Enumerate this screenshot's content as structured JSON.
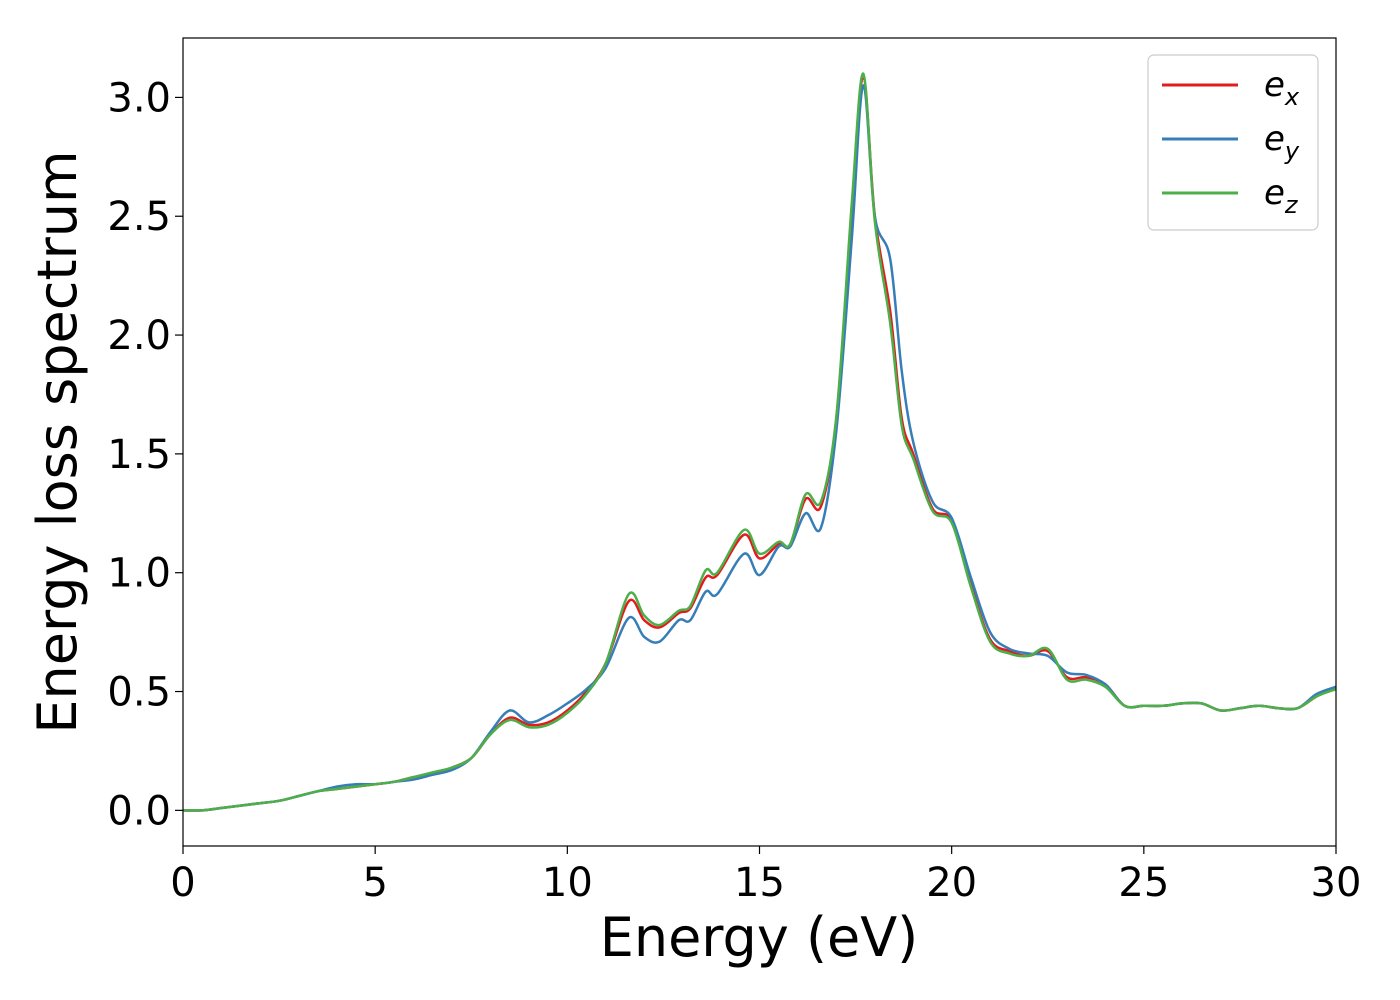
{
  "chart_data": {
    "type": "line",
    "title": "",
    "xlabel": "Energy (eV)",
    "ylabel": "Energy loss spectrum",
    "xlim": [
      0,
      30
    ],
    "ylim": [
      -0.15,
      3.25
    ],
    "xticks": [
      0,
      5,
      10,
      15,
      20,
      25,
      30
    ],
    "xtick_labels": [
      "0",
      "5",
      "10",
      "15",
      "20",
      "25",
      "30"
    ],
    "yticks": [
      0.0,
      0.5,
      1.0,
      1.5,
      2.0,
      2.5,
      3.0
    ],
    "ytick_labels": [
      "0.0",
      "0.5",
      "1.0",
      "1.5",
      "2.0",
      "2.5",
      "3.0"
    ],
    "grid": false,
    "legend_position": "top-right",
    "x": [
      0,
      0.5,
      1,
      1.5,
      2,
      2.5,
      3,
      3.5,
      4,
      4.5,
      5,
      5.5,
      6,
      6.5,
      7,
      7.5,
      8,
      8.5,
      9,
      9.5,
      10,
      10.5,
      11,
      11.6,
      12,
      12.4,
      12.9,
      13.2,
      13.6,
      13.9,
      14.6,
      15,
      15.5,
      15.8,
      16.2,
      16.6,
      17.0,
      17.4,
      17.7,
      18.0,
      18.4,
      18.7,
      19.0,
      19.5,
      20.0,
      20.5,
      21.0,
      21.5,
      22.0,
      22.5,
      23.0,
      23.5,
      24.0,
      24.5,
      25.0,
      25.5,
      26.0,
      26.5,
      27.0,
      27.5,
      28.0,
      28.5,
      29.0,
      29.5,
      30.0
    ],
    "series": [
      {
        "name": "e_x",
        "label_main": "e",
        "label_sub": "x",
        "color": "#e41a1c",
        "values": [
          0.0,
          0.0,
          0.01,
          0.02,
          0.03,
          0.04,
          0.06,
          0.08,
          0.09,
          0.1,
          0.11,
          0.12,
          0.14,
          0.15,
          0.18,
          0.22,
          0.32,
          0.39,
          0.36,
          0.37,
          0.42,
          0.5,
          0.62,
          0.88,
          0.8,
          0.77,
          0.83,
          0.85,
          0.98,
          0.99,
          1.16,
          1.06,
          1.12,
          1.12,
          1.31,
          1.28,
          1.65,
          2.5,
          3.08,
          2.5,
          2.1,
          1.65,
          1.5,
          1.27,
          1.22,
          0.95,
          0.72,
          0.67,
          0.65,
          0.67,
          0.56,
          0.56,
          0.53,
          0.44,
          0.44,
          0.44,
          0.45,
          0.45,
          0.42,
          0.43,
          0.44,
          0.43,
          0.43,
          0.48,
          0.52
        ]
      },
      {
        "name": "e_y",
        "label_main": "e",
        "label_sub": "y",
        "color": "#377eb8",
        "values": [
          0.0,
          0.0,
          0.01,
          0.02,
          0.03,
          0.04,
          0.06,
          0.08,
          0.1,
          0.11,
          0.11,
          0.12,
          0.13,
          0.15,
          0.17,
          0.22,
          0.33,
          0.42,
          0.37,
          0.4,
          0.45,
          0.51,
          0.6,
          0.81,
          0.73,
          0.71,
          0.8,
          0.8,
          0.92,
          0.91,
          1.08,
          0.99,
          1.11,
          1.11,
          1.25,
          1.19,
          1.6,
          2.4,
          3.05,
          2.5,
          2.32,
          1.85,
          1.55,
          1.3,
          1.23,
          0.98,
          0.75,
          0.68,
          0.66,
          0.65,
          0.58,
          0.57,
          0.53,
          0.44,
          0.44,
          0.44,
          0.45,
          0.45,
          0.42,
          0.43,
          0.44,
          0.43,
          0.43,
          0.49,
          0.52
        ]
      },
      {
        "name": "e_z",
        "label_main": "e",
        "label_sub": "z",
        "color": "#4daf4a",
        "values": [
          0.0,
          0.0,
          0.01,
          0.02,
          0.03,
          0.04,
          0.06,
          0.08,
          0.09,
          0.1,
          0.11,
          0.12,
          0.14,
          0.16,
          0.18,
          0.22,
          0.32,
          0.38,
          0.35,
          0.36,
          0.41,
          0.49,
          0.62,
          0.91,
          0.82,
          0.78,
          0.84,
          0.86,
          1.01,
          1.0,
          1.18,
          1.08,
          1.13,
          1.12,
          1.33,
          1.3,
          1.66,
          2.55,
          3.1,
          2.48,
          2.05,
          1.62,
          1.48,
          1.26,
          1.21,
          0.94,
          0.71,
          0.66,
          0.65,
          0.68,
          0.55,
          0.55,
          0.52,
          0.44,
          0.44,
          0.44,
          0.45,
          0.45,
          0.42,
          0.43,
          0.44,
          0.43,
          0.43,
          0.48,
          0.51
        ]
      }
    ]
  }
}
